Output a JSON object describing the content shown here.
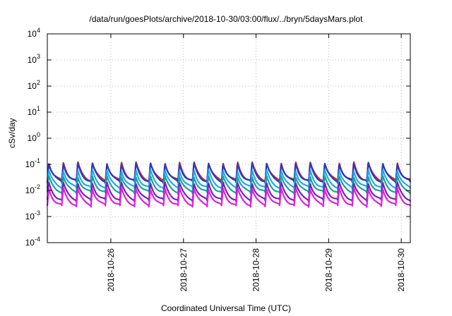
{
  "chart_data": {
    "type": "line",
    "title": "/data/run/goesPlots/archive/2018-10-30/03:00/flux/../bryn/5daysMars.plot",
    "xlabel": "Coordinated Universal Time (UTC)",
    "ylabel": "cSv/day",
    "yscale": "log",
    "ylim": [
      0.0001,
      10000
    ],
    "y_ticks": [
      {
        "base": "10",
        "exp": "-4"
      },
      {
        "base": "10",
        "exp": "-3"
      },
      {
        "base": "10",
        "exp": "-2"
      },
      {
        "base": "10",
        "exp": "-1"
      },
      {
        "base": "10",
        "exp": "0"
      },
      {
        "base": "10",
        "exp": "1"
      },
      {
        "base": "10",
        "exp": "2"
      },
      {
        "base": "10",
        "exp": "3"
      },
      {
        "base": "10",
        "exp": "4"
      }
    ],
    "xlim": [
      "2018-10-25T03:00",
      "2018-10-30T03:00"
    ],
    "x_ticks": [
      "2018-10-26",
      "2018-10-27",
      "2018-10-28",
      "2018-10-29",
      "2018-10-30"
    ],
    "grid": true,
    "legend": "none",
    "periodic_pattern": {
      "period_hours": 4.8,
      "description": "sawtooth: sharp rise at start of each cycle then decay",
      "series": [
        {
          "color": "#dd1e2f",
          "peak": 0.12,
          "trough": 0.022
        },
        {
          "color": "#1f3fbf",
          "peak": 0.11,
          "trough": 0.02
        },
        {
          "color": "#22a7f0",
          "peak": 0.06,
          "trough": 0.012
        },
        {
          "color": "#1aa39a",
          "peak": 0.035,
          "trough": 0.008
        },
        {
          "color": "#7a1fbf",
          "peak": 0.02,
          "trough": 0.004
        },
        {
          "color": "#e020e0",
          "peak": 0.012,
          "trough": 0.0025
        }
      ]
    }
  }
}
